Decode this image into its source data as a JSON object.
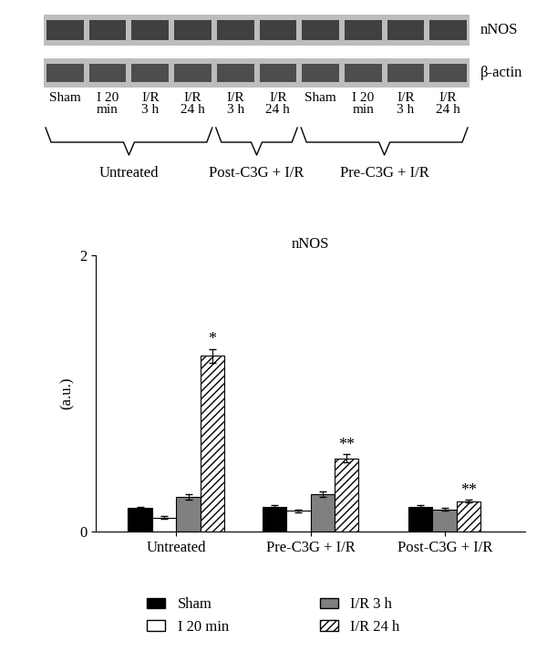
{
  "blot": {
    "rows": [
      "nNOS",
      "β-actin"
    ],
    "groups": [
      {
        "label": "Untreated",
        "lanes": [
          "Sham",
          "I 20 min",
          "I/R 3 h",
          "I/R 24 h"
        ]
      },
      {
        "label": "Post-C3G + I/R",
        "lanes": [
          "I/R 3 h",
          "I/R 24 h"
        ]
      },
      {
        "label": "Pre-C3G + I/R",
        "lanes": [
          "Sham",
          "I 20 min",
          "I/R 3 h",
          "I/R 24 h"
        ]
      }
    ]
  },
  "chart_data": {
    "type": "bar",
    "title": "nNOS",
    "y_label": "(a.u.)",
    "categories": [
      "Untreated",
      "Pre-C3G + I/R",
      "Post-C3G + I/R"
    ],
    "series": [
      {
        "name": "Sham",
        "color": "#000000",
        "values": [
          0.17,
          0.18,
          0.18
        ],
        "errors": [
          0.01,
          0.01,
          0.01
        ]
      },
      {
        "name": "I 20 min",
        "color": "#ffffff",
        "values": [
          0.1,
          0.15,
          null
        ],
        "errors": [
          0.01,
          0.01,
          null
        ]
      },
      {
        "name": "I/R 3 h",
        "color": "#808080",
        "values": [
          0.25,
          0.27,
          0.16
        ],
        "errors": [
          0.02,
          0.02,
          0.01
        ]
      },
      {
        "name": "I/R 24 h",
        "color": "#ffffff",
        "values": [
          1.27,
          0.53,
          0.22
        ],
        "errors": [
          0.05,
          0.03,
          0.01
        ],
        "significance": [
          "*",
          "**",
          "**"
        ]
      }
    ],
    "ylim": [
      0,
      2
    ],
    "yticks": [
      0,
      2
    ],
    "grid": false,
    "legend": "lower center"
  }
}
